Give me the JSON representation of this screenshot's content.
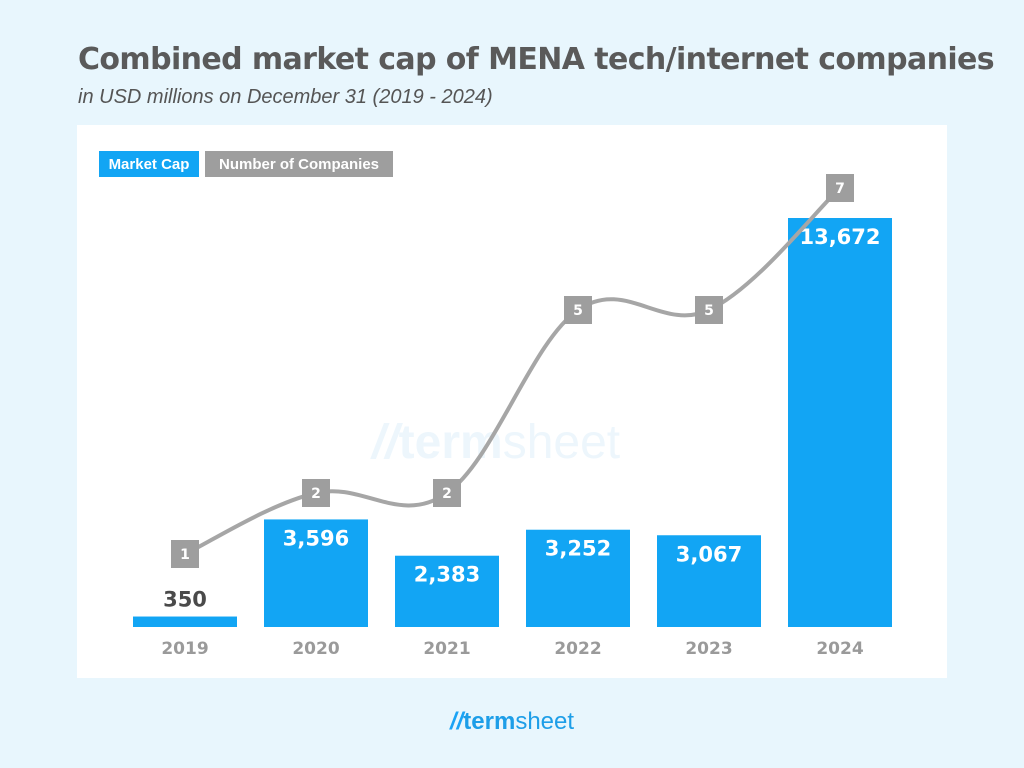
{
  "title": "Combined market cap of MENA tech/internet companies",
  "subtitle": "in USD millions on December 31 (2019 - 2024)",
  "watermark": {
    "slashes": "//",
    "bold": "term",
    "regular": "sheet"
  },
  "logo": {
    "slashes": "//",
    "bold": "term",
    "regular": "sheet"
  },
  "colors": {
    "bar": "#12a5f4",
    "line": "#a6a6a6",
    "label_box": "#9e9e9e",
    "axis_text": "#9a9a9a"
  },
  "chart_data": {
    "type": "bar",
    "categories": [
      "2019",
      "2020",
      "2021",
      "2022",
      "2023",
      "2024"
    ],
    "legend": [
      "Market Cap",
      "Number of Companies"
    ],
    "series": [
      {
        "name": "Market Cap",
        "type": "bar",
        "values": [
          350,
          3596,
          2383,
          3252,
          3067,
          13672
        ],
        "labels": [
          "350",
          "3,596",
          "2,383",
          "3,252",
          "3,067",
          "13,672"
        ]
      },
      {
        "name": "Number of Companies",
        "type": "line",
        "values": [
          1,
          2,
          2,
          5,
          5,
          7
        ],
        "labels": [
          "1",
          "2",
          "2",
          "5",
          "5",
          "7"
        ]
      }
    ],
    "ylim_bar": [
      0,
      14000
    ],
    "ylim_line": [
      0,
      7
    ],
    "grid": false,
    "legend_position": "top-left"
  }
}
